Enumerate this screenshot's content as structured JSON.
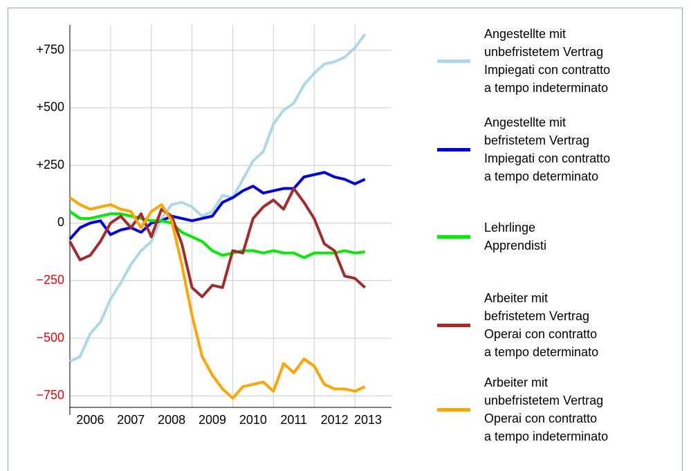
{
  "chart_data": {
    "type": "line",
    "x": [
      2006.0,
      2006.25,
      2006.5,
      2006.75,
      2007.0,
      2007.25,
      2007.5,
      2007.75,
      2008.0,
      2008.25,
      2008.5,
      2008.75,
      2009.0,
      2009.25,
      2009.5,
      2009.75,
      2010.0,
      2010.25,
      2010.5,
      2010.75,
      2011.0,
      2011.25,
      2011.5,
      2011.75,
      2012.0,
      2012.25,
      2012.5,
      2012.75,
      2013.0,
      2013.25
    ],
    "xlim": [
      2006.0,
      2013.9
    ],
    "xticks": [
      {
        "value": 2006,
        "label": "2006"
      },
      {
        "value": 2007,
        "label": "2007"
      },
      {
        "value": 2008,
        "label": "2008"
      },
      {
        "value": 2009,
        "label": "2009"
      },
      {
        "value": 2010,
        "label": "2010"
      },
      {
        "value": 2011,
        "label": "2011"
      },
      {
        "value": 2012,
        "label": "2012"
      },
      {
        "value": 2013,
        "label": "2013"
      }
    ],
    "ylim": [
      -800,
      860
    ],
    "yticks": [
      {
        "value": -750,
        "label": "−750"
      },
      {
        "value": -500,
        "label": "−500"
      },
      {
        "value": -250,
        "label": "−250"
      },
      0,
      {
        "value": 250,
        "label": "+250"
      },
      {
        "value": 500,
        "label": "+500"
      },
      {
        "value": 750,
        "label": "+750"
      }
    ],
    "grid": true,
    "series": [
      {
        "name": "Angestellte mit\nunbefristetem Vertrag\nImpiegati con contratto\na tempo indeterminato",
        "color": "#add8e6",
        "values": [
          -600,
          -580,
          -480,
          -430,
          -330,
          -260,
          -180,
          -120,
          -80,
          20,
          80,
          90,
          70,
          30,
          50,
          120,
          110,
          190,
          270,
          310,
          430,
          490,
          520,
          600,
          650,
          690,
          700,
          720,
          760,
          820
        ]
      },
      {
        "name": "Angestellte mit\nbefristetem Vertrag\nImpiegati con contratto\na tempo determinato",
        "color": "#0000ee",
        "values": [
          -70,
          -20,
          0,
          10,
          -50,
          -30,
          -20,
          -40,
          0,
          10,
          30,
          20,
          10,
          20,
          30,
          90,
          110,
          140,
          160,
          130,
          140,
          150,
          150,
          200,
          210,
          220,
          200,
          190,
          170,
          190
        ]
      },
      {
        "name": "Lehrlinge\nApprendisti",
        "color": "#00ee00",
        "values": [
          50,
          20,
          20,
          30,
          40,
          40,
          30,
          20,
          10,
          10,
          0,
          -40,
          -60,
          -80,
          -120,
          -140,
          -130,
          -120,
          -120,
          -130,
          -120,
          -130,
          -130,
          -150,
          -130,
          -130,
          -130,
          -120,
          -130,
          -125
        ]
      },
      {
        "name": "Arbeiter mit\nbefristetem Vertrag\nOperai con contratto\na tempo determinato",
        "color": "#a52a2a",
        "values": [
          -80,
          -160,
          -140,
          -80,
          0,
          30,
          -20,
          40,
          -60,
          60,
          30,
          -90,
          -280,
          -320,
          -270,
          -280,
          -120,
          -130,
          20,
          70,
          100,
          60,
          150,
          90,
          20,
          -90,
          -120,
          -230,
          -240,
          -280
        ]
      },
      {
        "name": "Arbeiter mit\nunbefristetem Vertrag\nOperai con contratto\na tempo indeterminato",
        "color": "#ffa500",
        "values": [
          110,
          80,
          60,
          70,
          80,
          60,
          50,
          -20,
          50,
          80,
          10,
          -180,
          -400,
          -580,
          -660,
          -720,
          -760,
          -710,
          -700,
          -690,
          -730,
          -610,
          -650,
          -590,
          -620,
          -700,
          -720,
          -720,
          -730,
          -710
        ]
      }
    ]
  }
}
